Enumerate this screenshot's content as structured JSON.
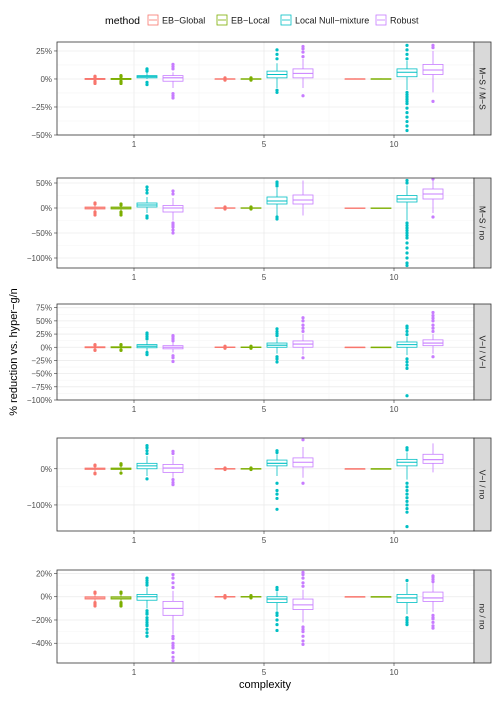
{
  "chart_data": {
    "type": "boxplot",
    "legend": {
      "title": "method",
      "position": "top",
      "entries": [
        "EB−Global",
        "EB−Local",
        "Local Null−mixture",
        "Robust"
      ]
    },
    "colors": {
      "EB−Global": "#F8766D",
      "EB−Local": "#7CAE00",
      "Local Null−mixture": "#00BFC4",
      "Robust": "#C77CFF",
      "strip_fill": "#D9D9D9",
      "grid_major": "#EBEBEB",
      "grid_minor": "#F5F5F5"
    },
    "xlabel": "complexity",
    "ylabel": "% reduction vs. hyper−g/n",
    "categories": [
      "1",
      "5",
      "10"
    ],
    "grid": true,
    "facets": [
      {
        "strip": "M−S / M−S",
        "ylim": [
          -50,
          33
        ],
        "yticks": [
          -50,
          -25,
          0,
          25
        ],
        "yticklabels": [
          "−50%",
          "−25%",
          "0%",
          "25%"
        ],
        "boxes": [
          [
            [
              -1,
              -0.5,
              0,
              0.5,
              1
            ],
            [
              -4,
              2,
              -3,
              1.5,
              -2,
              2.5
            ]
          ],
          [
            [
              -1,
              -0.5,
              0,
              0.5,
              1
            ],
            [
              -4,
              3,
              -3,
              2,
              -2,
              2.5
            ]
          ],
          [
            [
              0,
              1,
              2,
              3,
              6
            ],
            [
              -5,
              9,
              8,
              -3,
              7
            ]
          ],
          [
            [
              -8,
              -2,
              1,
              3,
              6
            ],
            [
              -13,
              -15,
              -17,
              13,
              11,
              9
            ]
          ],
          [
            [
              -0.5,
              -0.2,
              0,
              0.2,
              0.5
            ],
            [
              -1,
              1
            ]
          ],
          [
            [
              -0.5,
              -0.2,
              0,
              0.2,
              0.5
            ],
            [
              -1,
              1
            ]
          ],
          [
            [
              -8,
              1,
              4,
              7,
              14
            ],
            [
              -12,
              -10,
              18,
              22,
              26
            ]
          ],
          [
            [
              -8,
              1,
              5,
              9,
              18
            ],
            [
              -15,
              20,
              24,
              27,
              29
            ]
          ],
          [
            [
              -0.5,
              -0.2,
              0,
              0.2,
              0.5
            ],
            []
          ],
          [
            [
              -0.5,
              -0.2,
              0,
              0.2,
              0.5
            ],
            []
          ],
          [
            [
              -10,
              2,
              6,
              9,
              16
            ],
            [
              -14,
              -18,
              -22,
              -26,
              -30,
              -34,
              -38,
              -42,
              -46,
              18,
              22,
              26,
              30,
              -12,
              -16,
              -20
            ]
          ],
          [
            [
              -12,
              4,
              8,
              13,
              25
            ],
            [
              -20,
              28,
              30
            ]
          ]
        ]
      },
      {
        "strip": "M−S / no",
        "ylim": [
          -120,
          60
        ],
        "yticks": [
          -100,
          -50,
          0,
          50
        ],
        "yticklabels": [
          "−100%",
          "−50%",
          "0%",
          "50%"
        ],
        "boxes": [
          [
            [
              -6,
              -2,
              0,
              2,
              6
            ],
            [
              -14,
              -10,
              10,
              8,
              -8
            ]
          ],
          [
            [
              -6,
              -2,
              0,
              2,
              6
            ],
            [
              -14,
              -10,
              8,
              6,
              -8
            ]
          ],
          [
            [
              -10,
              2,
              6,
              10,
              22
            ],
            [
              -20,
              30,
              36,
              42,
              -16
            ]
          ],
          [
            [
              -25,
              -8,
              0,
              5,
              20
            ],
            [
              -30,
              -38,
              -44,
              -50,
              28,
              34,
              -34
            ]
          ],
          [
            [
              -1,
              -0.5,
              0,
              0.5,
              1
            ],
            [
              -2,
              2
            ]
          ],
          [
            [
              -1,
              -0.5,
              0,
              0.5,
              1
            ],
            [
              -2,
              2
            ]
          ],
          [
            [
              -15,
              8,
              14,
              22,
              40
            ],
            [
              -22,
              44,
              48,
              52,
              -18
            ]
          ],
          [
            [
              -15,
              8,
              16,
              26,
              55
            ],
            []
          ],
          [
            [
              -0.5,
              -0.2,
              0,
              0.2,
              0.5
            ],
            []
          ],
          [
            [
              -0.5,
              -0.2,
              0,
              0.2,
              0.5
            ],
            []
          ],
          [
            [
              -25,
              12,
              18,
              25,
              45
            ],
            [
              -30,
              -40,
              -50,
              -60,
              -70,
              -80,
              -90,
              -100,
              -110,
              -115,
              50,
              55,
              -35,
              -45,
              -55
            ]
          ],
          [
            [
              -10,
              18,
              28,
              38,
              55
            ],
            [
              -18,
              58
            ]
          ]
        ]
      },
      {
        "strip": "V−I / V−I",
        "ylim": [
          -100,
          82
        ],
        "yticks": [
          -100,
          -75,
          -50,
          -25,
          0,
          25,
          50,
          75
        ],
        "yticklabels": [
          "−100%",
          "−75%",
          "−50%",
          "−25%",
          "0%",
          "25%",
          "50%",
          "75%"
        ],
        "boxes": [
          [
            [
              -3,
              -1,
              0,
              1,
              3
            ],
            [
              -6,
              4,
              5,
              -5
            ]
          ],
          [
            [
              -3,
              -1,
              0,
              1,
              3
            ],
            [
              -6,
              4,
              5,
              -5
            ]
          ],
          [
            [
              -8,
              -1,
              2,
              5,
              12
            ],
            [
              -14,
              16,
              20,
              24,
              27,
              -10
            ]
          ],
          [
            [
              -10,
              -3,
              0,
              3,
              9
            ],
            [
              -16,
              -20,
              -27,
              12,
              16,
              20,
              22
            ]
          ],
          [
            [
              -1,
              -0.5,
              0,
              0.5,
              1
            ],
            [
              -2,
              2
            ]
          ],
          [
            [
              -1,
              -0.5,
              0,
              0.5,
              1
            ],
            [
              -2,
              2
            ]
          ],
          [
            [
              -12,
              0,
              4,
              8,
              18
            ],
            [
              -18,
              -22,
              -28,
              22,
              26,
              30,
              35
            ]
          ],
          [
            [
              -15,
              0,
              6,
              12,
              25
            ],
            [
              -20,
              30,
              36,
              42,
              50,
              56
            ]
          ],
          [
            [
              -0.5,
              -0.2,
              0,
              0.2,
              0.5
            ],
            []
          ],
          [
            [
              -0.5,
              -0.2,
              0,
              0.2,
              0.5
            ],
            []
          ],
          [
            [
              -15,
              0,
              5,
              10,
              20
            ],
            [
              -22,
              -28,
              -34,
              -40,
              -92,
              24,
              30,
              36,
              40
            ]
          ],
          [
            [
              -12,
              3,
              8,
              14,
              25
            ],
            [
              -18,
              30,
              36,
              42,
              50,
              55,
              60,
              66
            ]
          ]
        ]
      },
      {
        "strip": "V−I / no",
        "ylim": [
          -172,
          85
        ],
        "yticks": [
          -100,
          0
        ],
        "yticklabels": [
          "−100%",
          "0%"
        ],
        "boxes": [
          [
            [
              -7,
              -2,
              0,
              2,
              7
            ],
            [
              -14,
              -12,
              10,
              8
            ]
          ],
          [
            [
              -7,
              -2,
              0,
              2,
              7
            ],
            [
              -12,
              10,
              12,
              14
            ]
          ],
          [
            [
              -20,
              0,
              8,
              15,
              35
            ],
            [
              -28,
              42,
              50,
              58,
              64
            ]
          ],
          [
            [
              -25,
              -10,
              2,
              12,
              35
            ],
            [
              -30,
              -38,
              -44,
              42,
              48
            ]
          ],
          [
            [
              -1,
              -0.5,
              0,
              0.5,
              1
            ],
            [
              -2,
              2
            ]
          ],
          [
            [
              -1,
              -0.5,
              0,
              0.5,
              1
            ],
            [
              -2,
              2
            ]
          ],
          [
            [
              -20,
              8,
              15,
              24,
              40
            ],
            [
              -40,
              -60,
              -70,
              -82,
              -112,
              45,
              50
            ]
          ],
          [
            [
              -25,
              5,
              18,
              30,
              60
            ],
            [
              -40,
              80
            ]
          ],
          [
            [
              -0.5,
              -0.2,
              0,
              0.2,
              0.5
            ],
            []
          ],
          [
            [
              -0.5,
              -0.2,
              0,
              0.2,
              0.5
            ],
            []
          ],
          [
            [
              -30,
              8,
              18,
              26,
              45
            ],
            [
              -40,
              -50,
              -60,
              -70,
              -80,
              -90,
              -100,
              -110,
              -120,
              -160,
              52,
              58
            ]
          ],
          [
            [
              -10,
              15,
              25,
              40,
              70
            ],
            []
          ]
        ]
      },
      {
        "strip": "no / no",
        "ylim": [
          -57,
          23
        ],
        "yticks": [
          -40,
          -20,
          0,
          20
        ],
        "yticklabels": [
          "−40%",
          "−20%",
          "0%",
          "20%"
        ],
        "boxes": [
          [
            [
              -4,
              -2,
              -1,
              0,
              2
            ],
            [
              -5,
              -6,
              -7,
              -8,
              3,
              4
            ]
          ],
          [
            [
              -4,
              -2,
              -1,
              0,
              2
            ],
            [
              -5,
              -6,
              -7,
              -8,
              3,
              4
            ]
          ],
          [
            [
              -10,
              -3,
              0,
              2,
              8
            ],
            [
              -12,
              -15,
              -18,
              -20,
              -22,
              -25,
              -28,
              -31,
              -34,
              10,
              12,
              14,
              16,
              -14,
              -24
            ]
          ],
          [
            [
              -32,
              -16,
              -10,
              -4,
              5
            ],
            [
              -36,
              -40,
              -44,
              -48,
              -52,
              -55,
              8,
              12,
              16,
              19,
              -34,
              -42
            ]
          ],
          [
            [
              -0.4,
              -0.2,
              0,
              0.2,
              0.4
            ],
            [
              -1,
              1
            ]
          ],
          [
            [
              -0.4,
              -0.2,
              0,
              0.2,
              0.4
            ],
            [
              -1,
              1
            ]
          ],
          [
            [
              -12,
              -5,
              -2,
              0,
              4
            ],
            [
              -16,
              -20,
              -24,
              -29,
              6,
              8,
              -14
            ]
          ],
          [
            [
              -22,
              -11,
              -7,
              -2,
              6
            ],
            [
              -26,
              -30,
              -34,
              -38,
              -41,
              9,
              12,
              16,
              19,
              21,
              -28
            ]
          ],
          [
            [
              -0.3,
              -0.1,
              0,
              0.1,
              0.3
            ],
            []
          ],
          [
            [
              -0.3,
              -0.1,
              0,
              0.1,
              0.3
            ],
            []
          ],
          [
            [
              -15,
              -5,
              -1,
              2,
              12
            ],
            [
              -18,
              -20,
              -22,
              -24,
              14
            ]
          ],
          [
            [
              -13,
              -4,
              -1,
              4,
              12
            ],
            [
              -16,
              -19,
              -22,
              -25,
              -27,
              13,
              15,
              17,
              18,
              -18
            ]
          ]
        ]
      }
    ]
  }
}
